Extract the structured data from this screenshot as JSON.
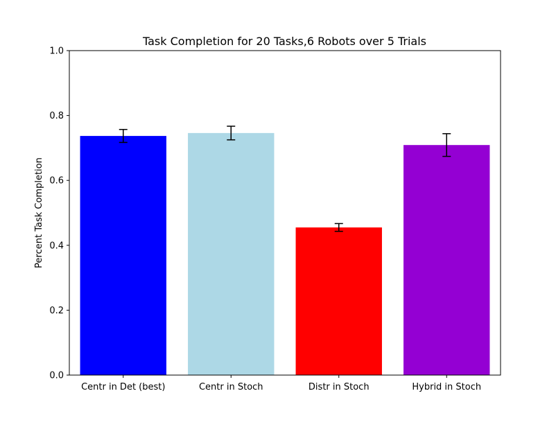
{
  "chart_data": {
    "type": "bar",
    "title": "Task Completion for 20 Tasks,6 Robots over 5 Trials",
    "xlabel": "",
    "ylabel": "Percent Task Completion",
    "ylim": [
      0,
      1.0
    ],
    "yticks": [
      "0.0",
      "0.2",
      "0.4",
      "0.6",
      "0.8",
      "1.0"
    ],
    "categories": [
      "Centr in Det (best)",
      "Centr in Stoch",
      "Distr in Stoch",
      "Hybrid in Stoch"
    ],
    "values": [
      0.737,
      0.746,
      0.455,
      0.709
    ],
    "errors": [
      0.02,
      0.021,
      0.012,
      0.035
    ],
    "colors": [
      "#0000ff",
      "#add8e6",
      "#ff0000",
      "#9400d3"
    ],
    "error_bar_color": "#000000",
    "grid": false,
    "legend": "none"
  }
}
